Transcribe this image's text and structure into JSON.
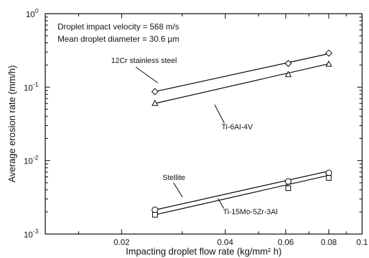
{
  "chart_data": {
    "type": "scatter",
    "x_scale": "log",
    "y_scale": "log",
    "xlim": [
      0.012,
      0.1
    ],
    "ylim": [
      0.001,
      1
    ],
    "xlabel": "Impacting droplet flow rate  (kg/mm² h)",
    "ylabel": "Average erosion rate  (mm/h)",
    "x_ticks": [
      {
        "value": 0.02,
        "label": "0.02"
      },
      {
        "value": 0.04,
        "label": "0.04"
      },
      {
        "value": 0.06,
        "label": "0.06"
      },
      {
        "value": 0.08,
        "label": "0.08"
      },
      {
        "value": 0.1,
        "label": "0.1"
      }
    ],
    "y_ticks": [
      {
        "value": 0.001,
        "base": "10",
        "exp": "-3"
      },
      {
        "value": 0.01,
        "base": "10",
        "exp": "-2"
      },
      {
        "value": 0.1,
        "base": "10",
        "exp": "-1"
      },
      {
        "value": 1,
        "base": "10",
        "exp": "0"
      }
    ],
    "annotations": [
      "Droplet impact velocity = 568 m/s",
      "Mean droplet diameter = 30.6 µm"
    ],
    "series": [
      {
        "name": "12Cr stainless steel",
        "marker": "diamond",
        "x": [
          0.025,
          0.061,
          0.08
        ],
        "y": [
          0.087,
          0.21,
          0.29
        ],
        "fit": [
          [
            0.025,
            0.087
          ],
          [
            0.08,
            0.285
          ]
        ]
      },
      {
        "name": "Ti-6Al-4V",
        "marker": "triangle",
        "x": [
          0.025,
          0.061,
          0.08
        ],
        "y": [
          0.06,
          0.148,
          0.205
        ],
        "fit": [
          [
            0.025,
            0.06
          ],
          [
            0.08,
            0.208
          ]
        ]
      },
      {
        "name": "Stellite",
        "marker": "circle",
        "x": [
          0.025,
          0.061,
          0.08
        ],
        "y": [
          0.00213,
          0.0052,
          0.0068
        ],
        "fit": [
          [
            0.025,
            0.00213
          ],
          [
            0.08,
            0.0072
          ]
        ]
      },
      {
        "name": "Ti-15Mo-5Zr-3Al",
        "marker": "square",
        "x": [
          0.025,
          0.061,
          0.08
        ],
        "y": [
          0.00183,
          0.0042,
          0.0058
        ],
        "fit": [
          [
            0.025,
            0.00183
          ],
          [
            0.08,
            0.0063
          ]
        ]
      }
    ]
  }
}
